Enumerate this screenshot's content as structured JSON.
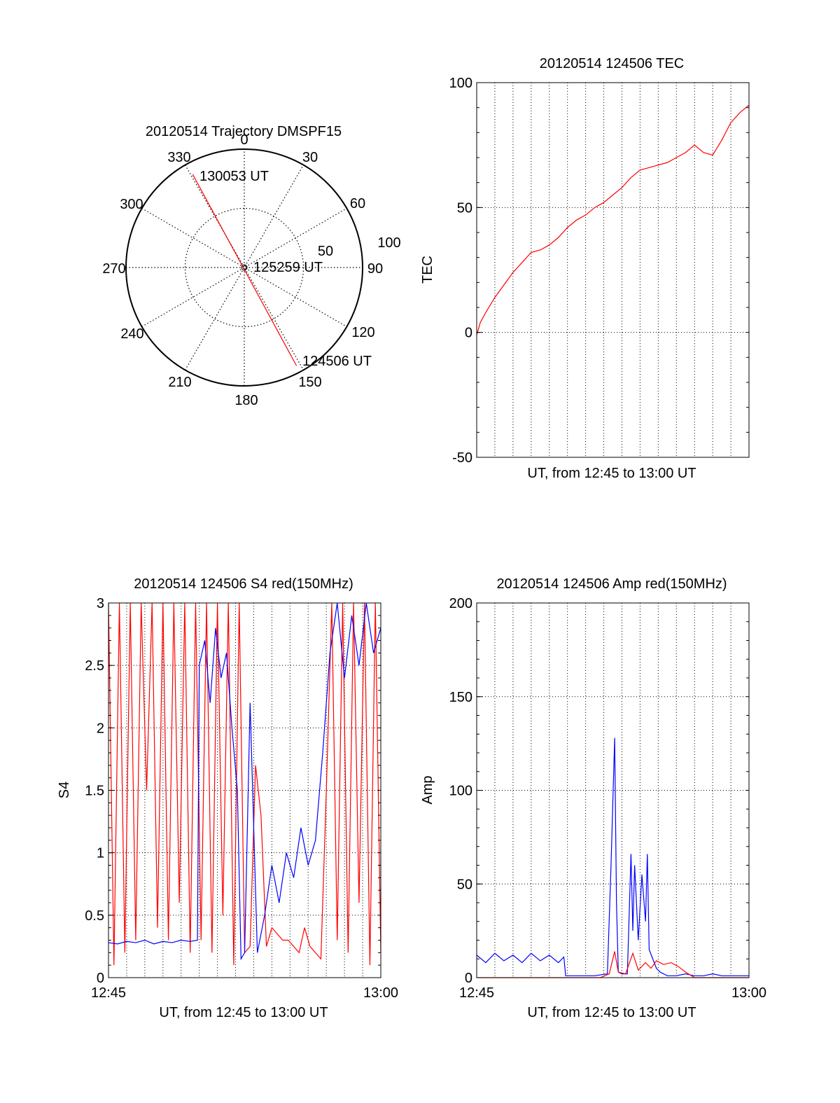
{
  "colors": {
    "red": "#ff0000",
    "blue": "#0000ff",
    "axis": "#000000",
    "grid": "#000000"
  },
  "chart_data": [
    {
      "id": "trajectory",
      "type": "polar",
      "title": "20120514 Trajectory DMSPF15",
      "angle_labels": [
        "0",
        "30",
        "60",
        "90",
        "120",
        "150",
        "180",
        "210",
        "240",
        "270",
        "300",
        "330"
      ],
      "radial_labels": [
        "50",
        "100"
      ],
      "rlim": [
        0,
        100
      ],
      "grid": true,
      "track": {
        "series_color": "red",
        "points": [
          {
            "az": 331,
            "r": 90
          },
          {
            "az": 152,
            "r": 94
          }
        ]
      },
      "annotations": [
        {
          "text": "130053 UT",
          "az": 331,
          "r": 90
        },
        {
          "text": "125259 UT",
          "az": 0,
          "r": 0
        },
        {
          "text": "124506 UT",
          "az": 152,
          "r": 94
        }
      ]
    },
    {
      "id": "tec",
      "type": "line",
      "title": "20120514 124506 TEC",
      "xlabel": "UT, from 12:45 to 13:00 UT",
      "ylabel": "TEC",
      "ylim": [
        -50,
        100
      ],
      "yticks": [
        "-50",
        "0",
        "50",
        "100"
      ],
      "xtick_labels": [],
      "grid": true,
      "series": [
        {
          "color": "red",
          "x": [
            0,
            0.2,
            0.5,
            1,
            1.5,
            2,
            2.5,
            3,
            3.5,
            4,
            4.5,
            5,
            5.5,
            6,
            6.5,
            7,
            7.5,
            8,
            8.5,
            9,
            9.5,
            10,
            10.5,
            11,
            11.5,
            12,
            12.5,
            13,
            13.5,
            14,
            14.5,
            15
          ],
          "y": [
            -1,
            4,
            8,
            14,
            19,
            24,
            28,
            32,
            33,
            35,
            38,
            42,
            45,
            47,
            50,
            52,
            55,
            58,
            62,
            65,
            66,
            67,
            68,
            70,
            72,
            75,
            72,
            71,
            77,
            84,
            88,
            91
          ]
        }
      ]
    },
    {
      "id": "s4",
      "type": "line",
      "title": "20120514 124506 S4 red(150MHz)",
      "xlabel": "UT, from 12:45 to 13:00 UT",
      "ylabel": "S4",
      "ylim": [
        0,
        3
      ],
      "yticks": [
        "0",
        "0.5",
        "1",
        "1.5",
        "2",
        "2.5",
        "3"
      ],
      "xtick_labels": [
        "12:45",
        "13:00"
      ],
      "grid": true,
      "series": [
        {
          "color": "red",
          "x": [
            0,
            0.3,
            0.6,
            0.9,
            1.2,
            1.5,
            1.8,
            2.1,
            2.4,
            2.7,
            3.0,
            3.3,
            3.6,
            3.9,
            4.2,
            4.5,
            4.8,
            5.1,
            5.4,
            5.7,
            6.0,
            6.3,
            6.6,
            6.9,
            7.2,
            7.5,
            7.8,
            8.1,
            8.4,
            8.7,
            9.0,
            9.3,
            9.6,
            9.9,
            10.2,
            10.5,
            10.8,
            11.1,
            11.4,
            11.7,
            12.0,
            12.3,
            12.6,
            12.9,
            13.2,
            13.5,
            13.8,
            14.1,
            14.4,
            14.7,
            15
          ],
          "y": [
            3,
            0.1,
            3,
            0.2,
            3,
            0.3,
            3,
            1.5,
            3,
            0.4,
            3,
            0.3,
            3,
            0.6,
            3,
            0.2,
            3,
            0.3,
            3,
            0.2,
            3,
            0.5,
            3,
            0.1,
            3,
            0.2,
            0.25,
            1.7,
            1.3,
            0.25,
            0.4,
            0.35,
            0.3,
            0.3,
            0.25,
            0.2,
            0.4,
            0.25,
            0.2,
            0.15,
            1.5,
            3,
            0.3,
            3,
            0.2,
            3,
            0.6,
            3,
            0.1,
            3,
            0.2
          ]
        },
        {
          "color": "blue",
          "x": [
            0,
            0.5,
            1,
            1.5,
            2,
            2.5,
            3,
            3.5,
            4,
            4.5,
            4.9,
            5.0,
            5.3,
            5.6,
            5.9,
            6.2,
            6.5,
            6.8,
            7.1,
            7.3,
            7.5,
            7.8,
            8.2,
            8.6,
            9.0,
            9.4,
            9.8,
            10.2,
            10.6,
            11.0,
            11.4,
            11.8,
            12.2,
            12.6,
            13.0,
            13.4,
            13.8,
            14.2,
            14.6,
            15
          ],
          "y": [
            0.28,
            0.27,
            0.29,
            0.28,
            0.3,
            0.27,
            0.29,
            0.28,
            0.3,
            0.29,
            0.3,
            2.5,
            2.7,
            2.2,
            2.8,
            2.4,
            2.6,
            2.0,
            1.5,
            0.15,
            0.2,
            2.2,
            0.2,
            0.5,
            0.9,
            0.6,
            1.0,
            0.8,
            1.2,
            0.9,
            1.1,
            1.8,
            2.6,
            3.0,
            2.4,
            2.9,
            2.5,
            3.0,
            2.6,
            2.8
          ]
        }
      ]
    },
    {
      "id": "amp",
      "type": "line",
      "title": "20120514 124506 Amp red(150MHz)",
      "xlabel": "UT, from 12:45 to 13:00 UT",
      "ylabel": "Amp",
      "ylim": [
        0,
        200
      ],
      "yticks": [
        "0",
        "50",
        "100",
        "150",
        "200"
      ],
      "xtick_labels": [
        "12:45",
        "13:00"
      ],
      "grid": true,
      "series": [
        {
          "color": "blue",
          "x": [
            0,
            0.5,
            1,
            1.5,
            2,
            2.5,
            3,
            3.5,
            4,
            4.5,
            4.8,
            4.9,
            6.5,
            7.2,
            7.4,
            7.6,
            7.7,
            7.8,
            8.0,
            8.3,
            8.5,
            8.6,
            8.7,
            8.9,
            9.1,
            9.3,
            9.4,
            9.5,
            9.7,
            9.9,
            10.1,
            10.5,
            11,
            11.5,
            12,
            12.5,
            13,
            13.5,
            14,
            14.5,
            15
          ],
          "y": [
            12,
            8,
            13,
            9,
            12,
            8,
            13,
            9,
            12,
            8,
            11,
            1,
            1,
            2,
            60,
            128,
            40,
            3,
            2,
            2,
            66,
            25,
            60,
            20,
            55,
            30,
            66,
            15,
            10,
            5,
            3,
            1,
            1,
            2,
            1,
            1,
            2,
            1,
            1,
            1,
            1
          ]
        },
        {
          "color": "red",
          "x": [
            0,
            6.8,
            7.3,
            7.6,
            7.8,
            8.2,
            8.6,
            8.9,
            9.3,
            9.6,
            9.9,
            10.3,
            10.7,
            11.1,
            11.5,
            12,
            15
          ],
          "y": [
            0,
            0,
            2,
            14,
            3,
            2,
            13,
            4,
            8,
            5,
            9,
            7,
            8,
            6,
            3,
            0,
            0
          ]
        }
      ]
    }
  ]
}
